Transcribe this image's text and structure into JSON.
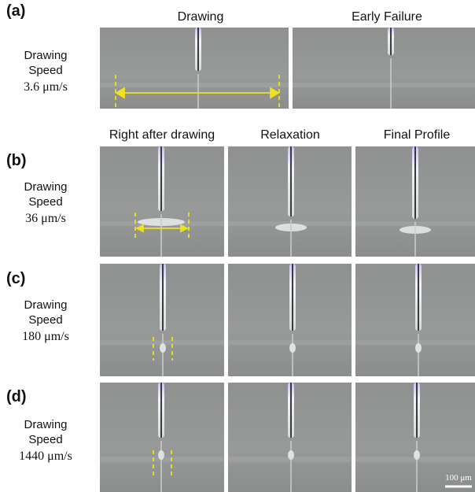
{
  "headers_top": [
    "Drawing",
    "Early Failure"
  ],
  "headers_mid": [
    "Right after drawing",
    "Relaxation",
    "Final Profile"
  ],
  "rows": [
    {
      "label": "(a)",
      "line1": "Drawing",
      "line2": "Speed",
      "speed": "3.6 μm/s"
    },
    {
      "label": "(b)",
      "line1": "Drawing",
      "line2": "Speed",
      "speed": "36 μm/s"
    },
    {
      "label": "(c)",
      "line1": "Drawing",
      "line2": "Speed",
      "speed": "180 μm/s"
    },
    {
      "label": "(d)",
      "line1": "Drawing",
      "line2": "Speed",
      "speed": "1440 μm/s"
    }
  ],
  "scale_bar": "100 μm"
}
